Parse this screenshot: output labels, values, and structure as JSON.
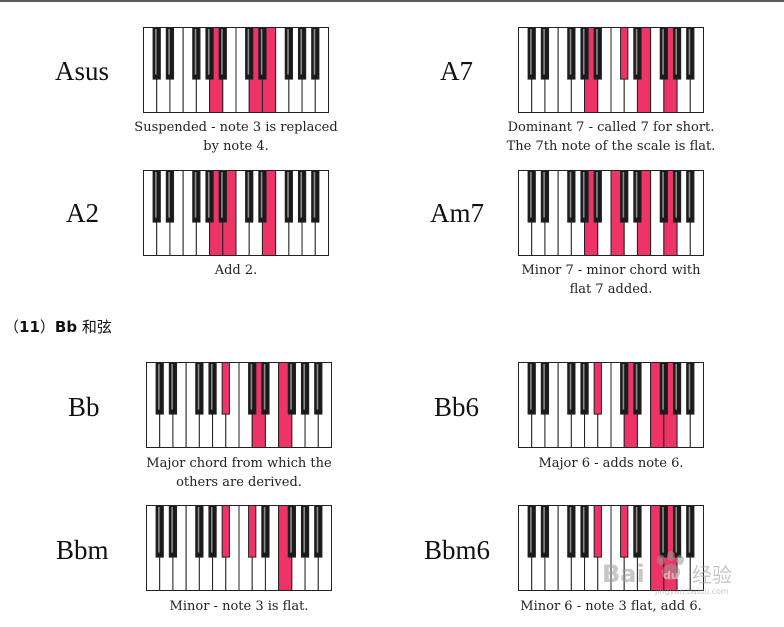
{
  "colors": {
    "highlight": "#ee3366",
    "black_key": "#1a1a1a",
    "border": "#222222"
  },
  "chords": [
    {
      "name": "Asus",
      "keys": [
        9,
        14,
        16
      ],
      "caption": [
        "Suspended - note 3 is replaced",
        "by note 4."
      ]
    },
    {
      "name": "A7",
      "keys": [
        9,
        13,
        16,
        19
      ],
      "caption": [
        "Dominant 7 - called 7 for short.",
        "The 7th note of the scale is flat."
      ]
    },
    {
      "name": "A2",
      "keys": [
        9,
        11,
        16
      ],
      "caption": [
        "Add 2."
      ]
    },
    {
      "name": "Am7",
      "keys": [
        9,
        12,
        16,
        19
      ],
      "caption": [
        "Minor 7 - minor chord with",
        "flat 7 added."
      ]
    },
    {
      "name": "Bb",
      "keys": [
        10,
        14,
        17
      ],
      "caption": [
        "Major chord from which the",
        "others are derived."
      ]
    },
    {
      "name": "Bb6",
      "keys": [
        10,
        14,
        17,
        19
      ],
      "caption": [
        "Major 6 - adds note 6."
      ]
    },
    {
      "name": "Bbm",
      "keys": [
        10,
        13,
        17
      ],
      "caption": [
        "Minor - note 3 is flat."
      ]
    },
    {
      "name": "Bbm6",
      "keys": [
        10,
        13,
        17,
        19
      ],
      "caption": [
        "Minor 6 - note 3 flat, add 6."
      ]
    }
  ],
  "section": {
    "number": "11",
    "open": "（",
    "close": "）",
    "chord": "Bb",
    "suffix": "和弦"
  },
  "watermark": {
    "brand": "Bai",
    "mid": "du",
    "tail": "经验",
    "sub": "jingyan.baidu.com"
  }
}
